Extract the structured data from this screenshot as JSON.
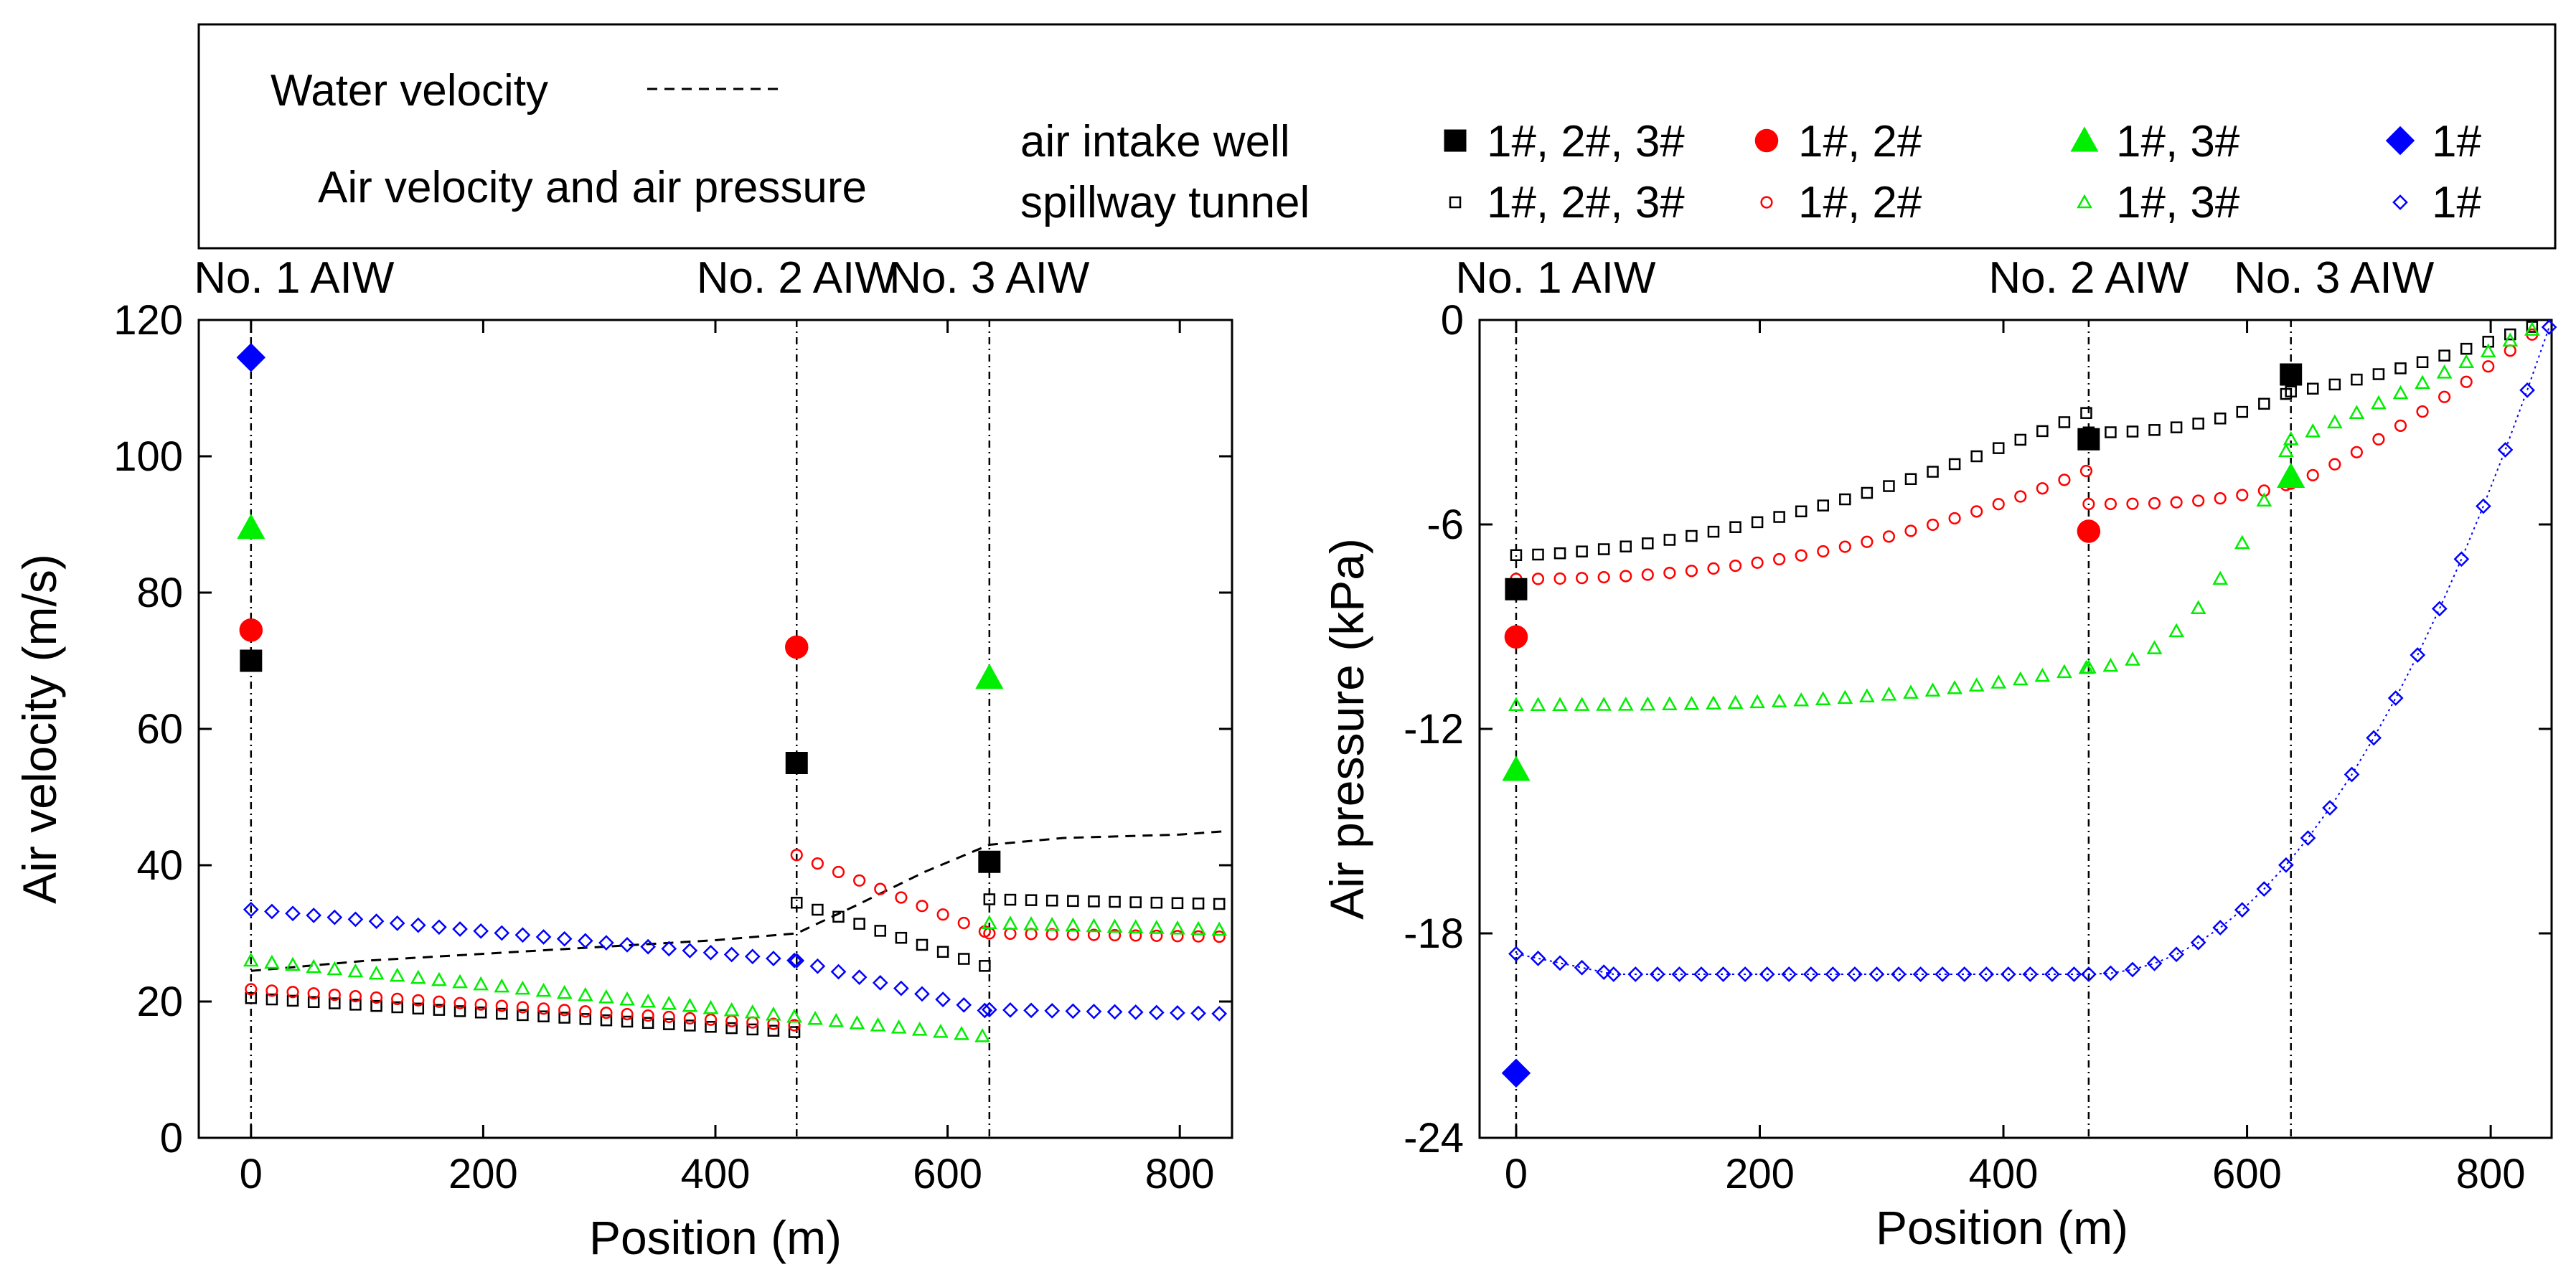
{
  "legend": {
    "water_velocity_label": "Water velocity",
    "air_label": "Air velocity and air pressure",
    "intake_row_label": "air intake well",
    "tunnel_row_label": "spillway tunnel",
    "case_labels": [
      "1#, 2#, 3#",
      "1#, 2#",
      "1#, 3#",
      "1#"
    ]
  },
  "colors": {
    "case1": "#000000",
    "case2": "#ff0000",
    "case3": "#00ee00",
    "case4": "#0000ff"
  },
  "markers": [
    "square",
    "circle",
    "triangle",
    "diamond"
  ],
  "chart_data": [
    {
      "type": "scatter",
      "xlabel": "Position (m)",
      "ylabel": "Air velocity (m/s)",
      "xlim": [
        -45,
        845
      ],
      "ylim": [
        0,
        120
      ],
      "xticks": [
        0,
        200,
        400,
        600,
        800
      ],
      "yticks": [
        0,
        20,
        40,
        60,
        80,
        100,
        120
      ],
      "annotations": [
        {
          "text": "No. 1 AIW",
          "x": 0
        },
        {
          "text": "No. 2 AIW",
          "x": 470
        },
        {
          "text": "No. 3 AIW",
          "x": 636
        }
      ],
      "water_velocity": {
        "x": [
          0,
          100,
          200,
          300,
          400,
          470,
          520,
          580,
          636,
          700,
          800,
          840
        ],
        "y": [
          24.5,
          26,
          27,
          28,
          29,
          30,
          34,
          39,
          43,
          44,
          44.5,
          45
        ]
      },
      "air_intake_well": [
        {
          "case": "1#, 2#, 3#",
          "x": [
            0,
            470,
            636
          ],
          "y": [
            70,
            55,
            40.5
          ]
        },
        {
          "case": "1#, 2#",
          "x": [
            0,
            470
          ],
          "y": [
            74.5,
            72
          ]
        },
        {
          "case": "1#, 3#",
          "x": [
            0,
            636
          ],
          "y": [
            89.5,
            67.5
          ]
        },
        {
          "case": "1#",
          "x": [
            0
          ],
          "y": [
            114.5
          ]
        }
      ],
      "spillway_tunnel": [
        {
          "case": "1#, 2#, 3#",
          "segments": [
            {
              "x0": 0,
              "x1": 470,
              "y0": 20.5,
              "y1": 15.5
            },
            {
              "x0": 470,
              "x1": 636,
              "y0": 34.5,
              "y1": 25
            },
            {
              "x0": 636,
              "x1": 840,
              "y0": 35,
              "y1": 34.3
            }
          ]
        },
        {
          "case": "1#, 2#",
          "segments": [
            {
              "x0": 0,
              "x1": 470,
              "y0": 21.8,
              "y1": 16.5
            },
            {
              "x0": 470,
              "x1": 636,
              "y0": 41.5,
              "y1": 30
            },
            {
              "x0": 636,
              "x1": 840,
              "y0": 30,
              "y1": 29.5
            }
          ]
        },
        {
          "case": "1#, 3#",
          "segments": [
            {
              "x0": 0,
              "x1": 636,
              "y0": 26,
              "y1": 14.8
            },
            {
              "x0": 636,
              "x1": 840,
              "y0": 31.5,
              "y1": 30.5
            }
          ]
        },
        {
          "case": "1#",
          "segments": [
            {
              "x0": 0,
              "x1": 470,
              "y0": 33.5,
              "y1": 26
            },
            {
              "x0": 470,
              "x1": 636,
              "y0": 26,
              "y1": 18.5
            },
            {
              "x0": 636,
              "x1": 840,
              "y0": 18.8,
              "y1": 18.2
            }
          ]
        }
      ]
    },
    {
      "type": "scatter",
      "xlabel": "Position (m)",
      "ylabel": "Air pressure (kPa)",
      "xlim": [
        -30,
        850
      ],
      "ylim": [
        -24,
        0
      ],
      "xticks": [
        0,
        200,
        400,
        600,
        800
      ],
      "yticks": [
        -24,
        -18,
        -12,
        -6,
        0
      ],
      "annotations": [
        {
          "text": "No. 1 AIW",
          "x": 0
        },
        {
          "text": "No. 2 AIW",
          "x": 470
        },
        {
          "text": "No. 3 AIW",
          "x": 636
        }
      ],
      "air_intake_well": [
        {
          "case": "1#, 2#, 3#",
          "x": [
            0,
            470,
            636
          ],
          "y": [
            -7.9,
            -3.5,
            -1.6
          ]
        },
        {
          "case": "1#, 2#",
          "x": [
            0,
            470
          ],
          "y": [
            -9.3,
            -6.2
          ]
        },
        {
          "case": "1#, 3#",
          "x": [
            0,
            636
          ],
          "y": [
            -13.2,
            -4.6
          ]
        },
        {
          "case": "1#",
          "x": [
            0
          ],
          "y": [
            -22.1
          ]
        }
      ],
      "spillway_tunnel": [
        {
          "case": "1#, 2#, 3#",
          "curves": [
            {
              "x0": 0,
              "x1": 470,
              "y0": -6.9,
              "y1": -2.7,
              "p": 1.7
            },
            {
              "x0": 470,
              "x1": 636,
              "y0": -3.3,
              "y1": -2.1,
              "p": 2.5
            },
            {
              "x0": 636,
              "x1": 850,
              "y0": -2.1,
              "y1": 0,
              "p": 1.3
            }
          ]
        },
        {
          "case": "1#, 2#",
          "curves": [
            {
              "x0": 0,
              "x1": 470,
              "y0": -7.6,
              "y1": -4.4,
              "p": 2.2
            },
            {
              "x0": 470,
              "x1": 636,
              "y0": -5.4,
              "y1": -4.8,
              "p": 3
            },
            {
              "x0": 636,
              "x1": 850,
              "y0": -4.8,
              "y1": 0,
              "p": 1.2
            }
          ]
        },
        {
          "case": "1#, 3#",
          "curves": [
            {
              "x0": 0,
              "x1": 470,
              "y0": -11.3,
              "y1": -10.2,
              "p": 3
            },
            {
              "x0": 470,
              "x1": 636,
              "y0": -10.2,
              "y1": -3.5,
              "p": 2.2
            },
            {
              "x0": 636,
              "x1": 850,
              "y0": -3.5,
              "y1": 0,
              "p": 1.1
            }
          ]
        },
        {
          "case": "1#",
          "curves": [
            {
              "x0": 0,
              "x1": 80,
              "y0": -18.6,
              "y1": -19.2,
              "p": 1
            },
            {
              "x0": 80,
              "x1": 470,
              "y0": -19.2,
              "y1": -19.2,
              "p": 1
            },
            {
              "x0": 470,
              "x1": 850,
              "y0": -19.2,
              "y1": 0,
              "p": 2.1
            }
          ]
        }
      ]
    }
  ]
}
